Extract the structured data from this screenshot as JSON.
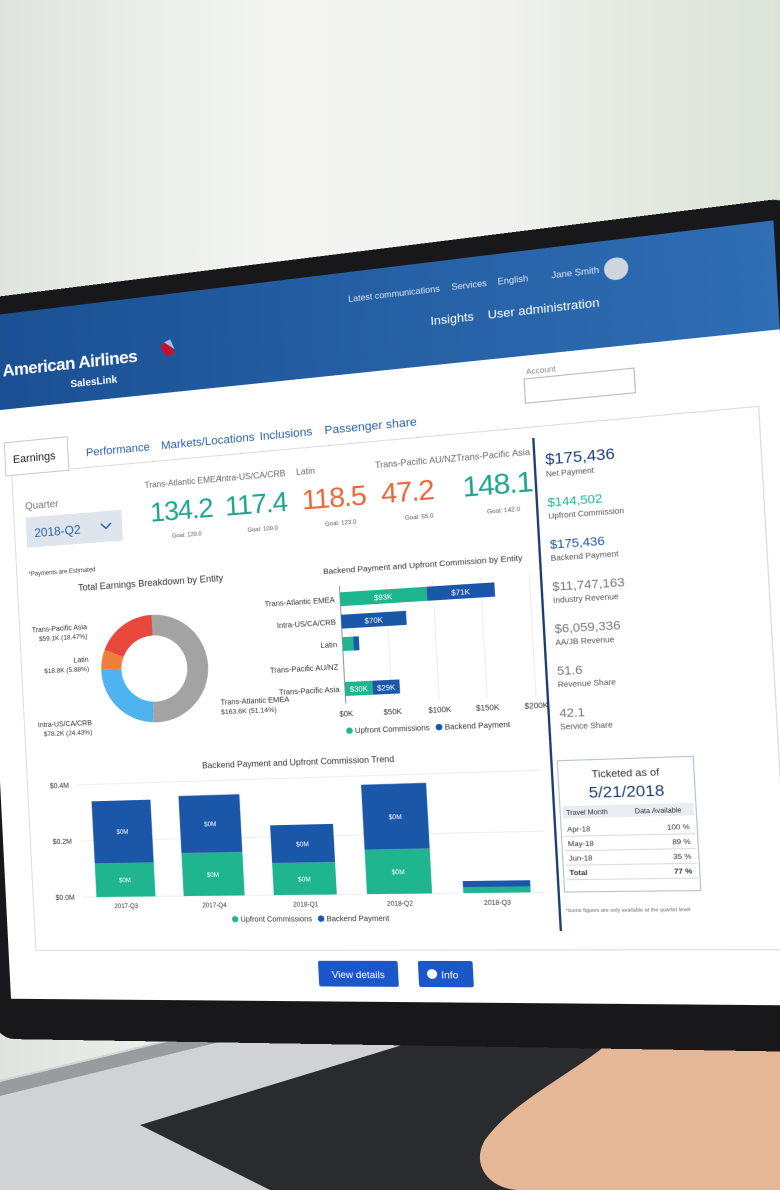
{
  "header": {
    "brand": "American Airlines",
    "product": "SalesLink",
    "links": [
      "Latest communications",
      "Services",
      "English",
      "Jane Smith"
    ],
    "menu": [
      "Insights",
      "User administration"
    ],
    "account_label": "Account"
  },
  "tabs": [
    "Earnings",
    "Performance",
    "Markets/Locations",
    "Inclusions",
    "Passenger share"
  ],
  "filter": {
    "label": "Quarter",
    "value": "2018-Q2"
  },
  "kpis": [
    {
      "name": "Trans-Atlantic EMEA",
      "value": "134.2",
      "goal": "Goal: 129.0",
      "color": "#1fa58f"
    },
    {
      "name": "Intra-US/CA/CRB",
      "value": "117.4",
      "goal": "Goal: 109.0",
      "color": "#1fa58f"
    },
    {
      "name": "Latin",
      "value": "118.5",
      "goal": "Goal: 123.0",
      "color": "#e8673b"
    },
    {
      "name": "Trans-Pacific AU/NZ",
      "value": "47.2",
      "goal": "Goal: 55.0",
      "color": "#e8673b"
    },
    {
      "name": "Trans-Pacific Asia",
      "value": "148.1",
      "goal": "Goal: 142.0",
      "color": "#1fa58f"
    }
  ],
  "note": "*Payments are Estimated",
  "summary": [
    {
      "value": "$175,436",
      "label": "Net Payment",
      "color": "#1b3f73"
    },
    {
      "value": "$144,502",
      "label": "Upfront Commission",
      "color": "#1fb58f"
    },
    {
      "value": "$175,436",
      "label": "Backend Payment",
      "color": "#1b57a8"
    },
    {
      "value": "$11,747,163",
      "label": "Industry Revenue",
      "color": "#777777"
    },
    {
      "value": "$6,059,336",
      "label": "AA/JB Revenue",
      "color": "#777777"
    },
    {
      "value": "51.6",
      "label": "Revenue Share",
      "color": "#777777"
    },
    {
      "value": "42.1",
      "label": "Service Share",
      "color": "#777777"
    }
  ],
  "ticketed": {
    "title": "Ticketed as of",
    "date": "5/21/2018",
    "columns": [
      "Travel Month",
      "Data Available"
    ],
    "rows": [
      [
        "Apr-18",
        "100 %"
      ],
      [
        "May-18",
        "89 %"
      ],
      [
        "Jun-18",
        "35 %"
      ],
      [
        "Total",
        "77 %"
      ]
    ],
    "footnote": "*Some figures are only available at the quarter level"
  },
  "buttons": [
    "View details",
    "Info"
  ],
  "chart_data": [
    {
      "type": "donut",
      "title": "Total Earnings Breakdown by Entity",
      "categories": [
        "Trans-Pacific Asia",
        "Latin",
        "Intra-US/CA/CRB",
        "Trans-Atlantic EMEA"
      ],
      "values": [
        18.47,
        5.88,
        24.43,
        51.14
      ],
      "value_labels": [
        "$59.1K (18.47%)",
        "$18.8K (5.88%)",
        "$78.2K (24.43%)",
        "$163.6K (51.14%)"
      ],
      "colors": [
        "#e8483b",
        "#f07f3c",
        "#4fb3ef",
        "#a3a3a3"
      ]
    },
    {
      "type": "hbar",
      "stacked": true,
      "title": "Backend Payment and Upfront Commission by Entity",
      "categories": [
        "Trans-Atlantic EMEA",
        "Intra-US/CA/CRB",
        "Latin",
        "Trans-Pacific AU/NZ",
        "Trans-Pacific Asia"
      ],
      "series": [
        {
          "name": "Upfront Commissions",
          "color": "#1fb58f",
          "values": [
            93000,
            0,
            12000,
            0,
            30000
          ],
          "value_labels": [
            "$93K",
            null,
            null,
            null,
            "$30K"
          ]
        },
        {
          "name": "Backend Payment",
          "color": "#1b57a8",
          "values": [
            71000,
            70000,
            6000,
            0,
            29000
          ],
          "value_labels": [
            "$71K",
            "$70K",
            null,
            null,
            "$29K"
          ]
        }
      ],
      "xlim": [
        0,
        200000
      ],
      "xticks": [
        {
          "value": 0,
          "label": "$0K"
        },
        {
          "value": 50000,
          "label": "$50K"
        },
        {
          "value": 100000,
          "label": "$100K"
        },
        {
          "value": 150000,
          "label": "$150K"
        },
        {
          "value": 200000,
          "label": "$200K"
        }
      ]
    },
    {
      "type": "column",
      "stacked": true,
      "title": "Backend Payment and Upfront Commission Trend",
      "categories": [
        "2017-Q3",
        "2017-Q4",
        "2018-Q1",
        "2018-Q2",
        "2018-Q3"
      ],
      "series": [
        {
          "name": "Upfront Commissions",
          "color": "#1fb58f",
          "values": [
            120000,
            150000,
            110000,
            150000,
            20000
          ],
          "value_labels": [
            "$0M",
            "$0M",
            "$0M",
            "$0M",
            null
          ]
        },
        {
          "name": "Backend Payment",
          "color": "#1b57a8",
          "values": [
            220000,
            200000,
            130000,
            220000,
            20000
          ],
          "value_labels": [
            "$0M",
            "$0M",
            "$0M",
            "$0M",
            null
          ]
        }
      ],
      "ylim": [
        0,
        400000
      ],
      "yticks": [
        {
          "value": 0,
          "label": "$0.0M"
        },
        {
          "value": 200000,
          "label": "$0.2M"
        },
        {
          "value": 400000,
          "label": "$0.4M"
        }
      ]
    }
  ]
}
